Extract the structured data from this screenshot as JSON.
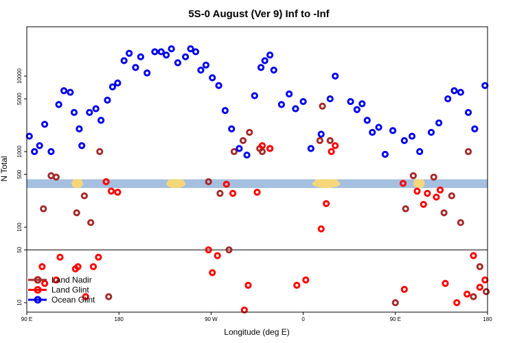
{
  "chart_data": {
    "type": "scatter",
    "title": "5S-0 August (Ver 9)   Inf to -Inf",
    "xlabel": "Longitude (deg E)",
    "ylabel": "N Total",
    "xlim": [
      0,
      360
    ],
    "ylim": [
      7.5,
      45000
    ],
    "yscale": "log",
    "x_ticks": [
      {
        "value": 0,
        "label": "90 E"
      },
      {
        "value": 72,
        "label": "180"
      },
      {
        "value": 144,
        "label": "90 W"
      },
      {
        "value": 216,
        "label": "0"
      },
      {
        "value": 288,
        "label": "90 E"
      },
      {
        "value": 360,
        "label": "180"
      }
    ],
    "y_ticks": [
      {
        "value": 10,
        "label": "10"
      },
      {
        "value": 50,
        "label": "50"
      },
      {
        "value": 100,
        "label": "100"
      },
      {
        "value": 500,
        "label": "500"
      },
      {
        "value": 1000,
        "label": "1000"
      },
      {
        "value": 5000,
        "label": "5000"
      },
      {
        "value": 10000,
        "label": "10000"
      }
    ],
    "reference_line": 50,
    "land_band": {
      "ymin": 330,
      "ymax": 430,
      "land_x_ranges": [
        [
          35,
          44
        ],
        [
          109,
          124
        ],
        [
          223,
          245
        ],
        [
          302,
          311
        ]
      ]
    },
    "legend": {
      "position": "bottom-left",
      "entries": [
        "Land Nadir",
        "Land Glint",
        "Ocean Glint"
      ]
    },
    "series": [
      {
        "name": "Land Nadir",
        "color": "#a52a2a",
        "x": [
          13,
          19,
          23,
          39,
          45,
          50,
          57,
          64,
          142,
          151,
          158,
          162,
          169,
          174,
          182,
          184,
          190,
          229,
          231,
          237,
          288,
          296,
          302,
          318,
          326,
          332,
          339,
          345,
          349,
          354,
          359
        ],
        "y": [
          175,
          480,
          460,
          155,
          260,
          115,
          1000,
          12,
          400,
          280,
          50,
          1000,
          1400,
          1800,
          1100,
          1000,
          1100,
          1400,
          4000,
          1400,
          10,
          175,
          480,
          460,
          155,
          260,
          115,
          1000,
          12,
          30,
          14
        ]
      },
      {
        "name": "Land Glint",
        "color": "#ff0000",
        "x": [
          12,
          14,
          23,
          26,
          38,
          40,
          46,
          52,
          56,
          62,
          66,
          71,
          142,
          145,
          149,
          156,
          161,
          170,
          173,
          180,
          184,
          190,
          211,
          218,
          230,
          234,
          238,
          241,
          294,
          295,
          305,
          310,
          313,
          320,
          323,
          327,
          336,
          344,
          349,
          354,
          358
        ],
        "y": [
          30,
          18,
          20,
          40,
          28,
          30,
          12,
          30,
          40,
          400,
          300,
          290,
          50,
          25,
          42,
          370,
          280,
          8,
          17,
          290,
          1200,
          1100,
          17,
          20,
          95,
          205,
          1000,
          1200,
          380,
          15,
          300,
          200,
          280,
          250,
          310,
          18,
          10,
          13,
          42,
          16,
          20
        ]
      },
      {
        "name": "Ocean Glint",
        "color": "#0000ee",
        "x": [
          2,
          6,
          10,
          14,
          19,
          25,
          29,
          34,
          37,
          41,
          43,
          49,
          54,
          58,
          63,
          67,
          71,
          76,
          80,
          85,
          89,
          94,
          100,
          105,
          109,
          113,
          118,
          124,
          128,
          132,
          136,
          140,
          145,
          150,
          155,
          160,
          166,
          172,
          178,
          183,
          186,
          190,
          193,
          199,
          205,
          210,
          216,
          222,
          230,
          237,
          241,
          253,
          258,
          262,
          266,
          270,
          275,
          280,
          286,
          295,
          301,
          307,
          316,
          322,
          329,
          334,
          339,
          345,
          350,
          358
        ],
        "y": [
          1600,
          1000,
          1200,
          2300,
          1000,
          4200,
          6400,
          6100,
          3300,
          2000,
          1200,
          3300,
          3700,
          2600,
          4800,
          7200,
          8100,
          16000,
          20000,
          13000,
          18000,
          11000,
          21000,
          21000,
          19000,
          23000,
          15000,
          18000,
          23000,
          21000,
          12000,
          14000,
          9500,
          7500,
          3500,
          2000,
          1100,
          900,
          5500,
          13000,
          16000,
          19000,
          12000,
          4200,
          5800,
          3700,
          4600,
          1100,
          1700,
          5000,
          10000,
          4600,
          3600,
          4300,
          2600,
          1800,
          2100,
          920,
          1900,
          1400,
          1600,
          1000,
          1800,
          2400,
          5000,
          6400,
          6100,
          3300,
          2000,
          7500
        ]
      }
    ]
  }
}
